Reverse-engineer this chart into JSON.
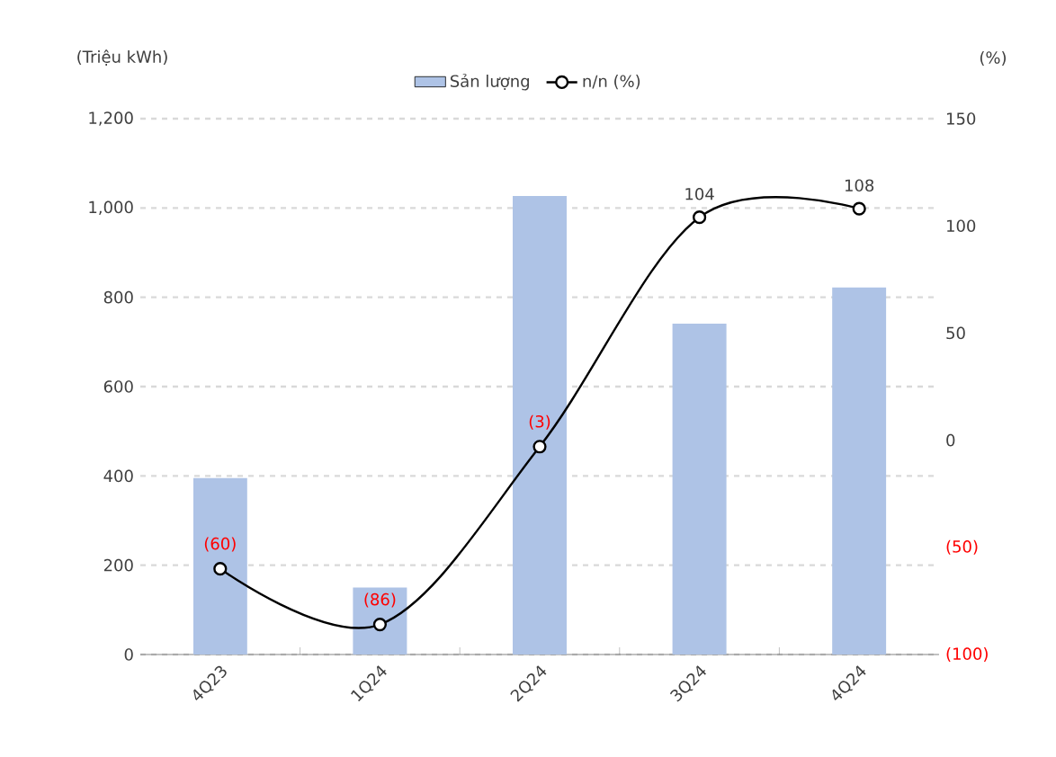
{
  "chart_data": {
    "type": "bar",
    "ylabel": "(Triệu kWh)",
    "y2label": "(%)",
    "categories": [
      "4Q23",
      "1Q24",
      "2Q24",
      "3Q24",
      "4Q24"
    ],
    "series": [
      {
        "name": "Sản lượng",
        "color": "#aec3e6",
        "values": [
          395,
          150,
          1027,
          741,
          822
        ]
      },
      {
        "name": "n/n (%)",
        "type": "line",
        "axis": "y2",
        "color": "#000000",
        "marker": "circle",
        "values": [
          -60,
          -86,
          -3,
          104,
          108
        ],
        "value_labels": [
          "(60)",
          "(86)",
          "(3)",
          "104",
          "108"
        ]
      }
    ],
    "ylim": [
      0,
      1200
    ],
    "yticks": [
      {
        "value": 0,
        "label": "0"
      },
      {
        "value": 200,
        "label": "200"
      },
      {
        "value": 400,
        "label": "400"
      },
      {
        "value": 600,
        "label": "600"
      },
      {
        "value": 800,
        "label": "800"
      },
      {
        "value": 1000,
        "label": "1,000"
      },
      {
        "value": 1200,
        "label": "1,200"
      }
    ],
    "y2lim": [
      -100,
      150
    ],
    "y2ticks": [
      {
        "value": -100,
        "label": "(100)"
      },
      {
        "value": -50,
        "label": "(50)"
      },
      0,
      50,
      100,
      150
    ],
    "grid": "y",
    "legend": "top"
  }
}
